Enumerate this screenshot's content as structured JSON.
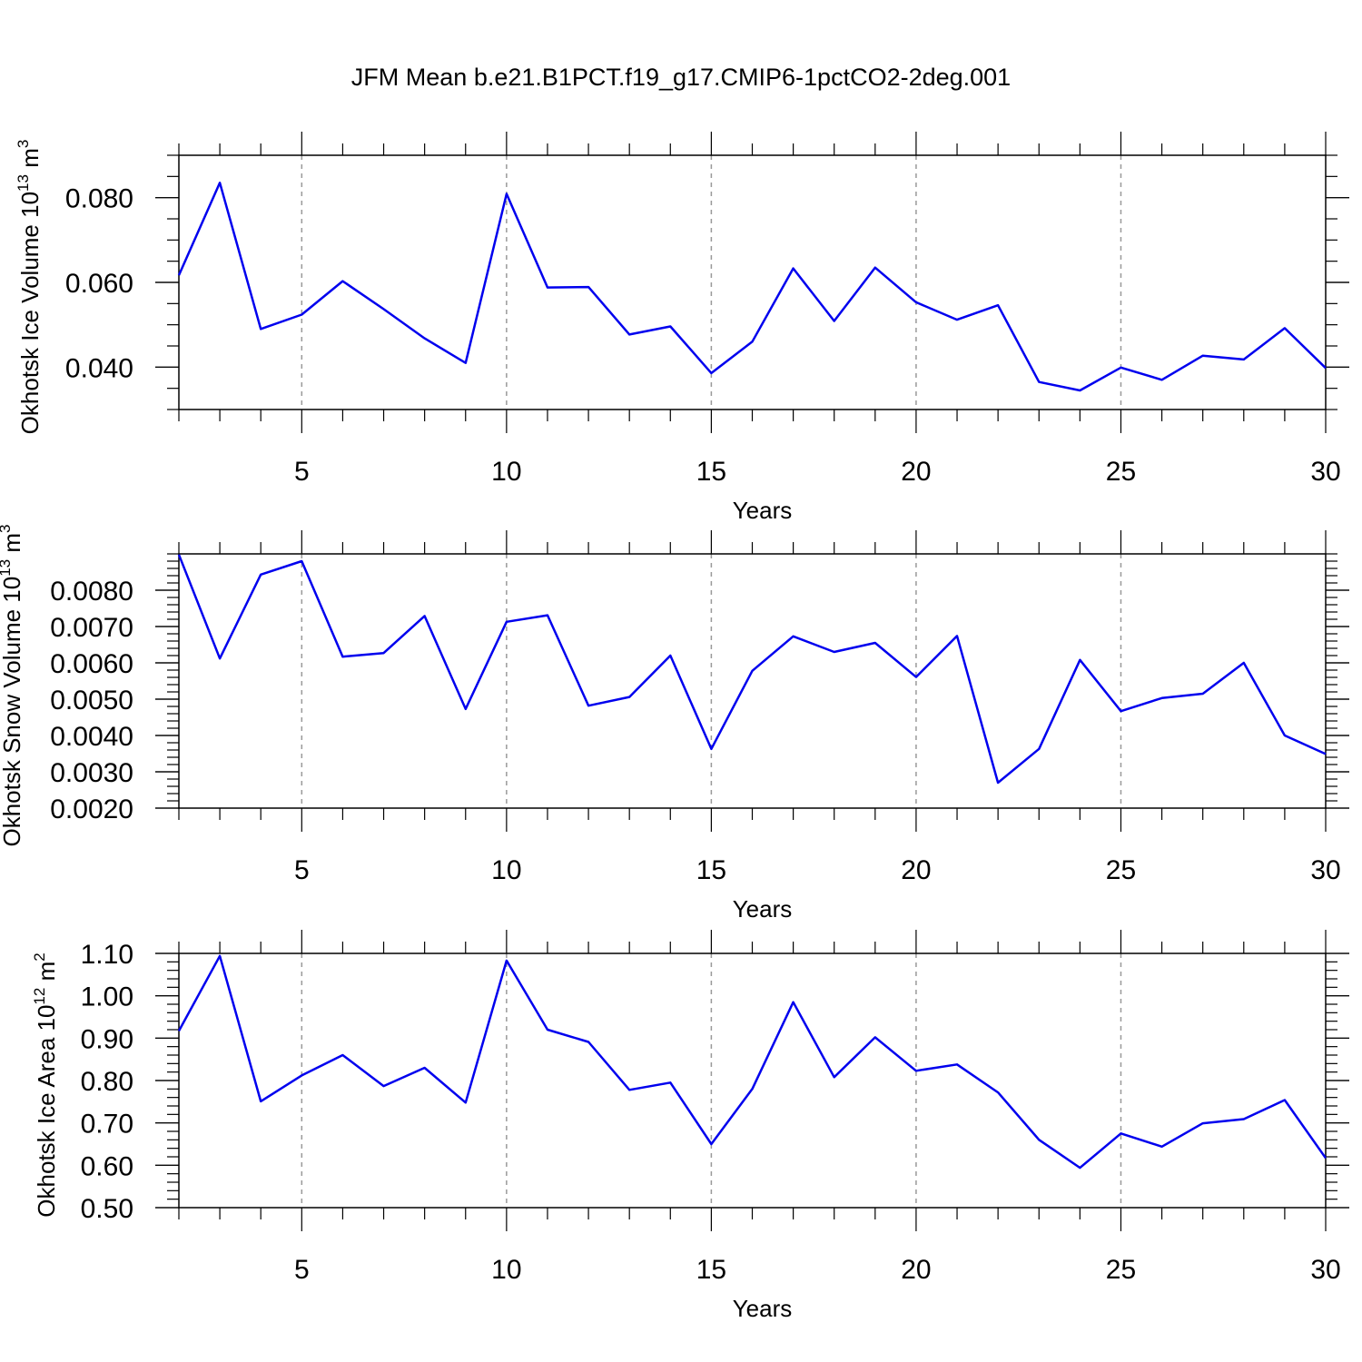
{
  "title": "JFM Mean b.e21.B1PCT.f19_g17.CMIP6-1pctCO2-2deg.001",
  "line_color": "#0000ee",
  "chart_data": [
    {
      "type": "line",
      "xlabel": "Years",
      "ylabel": "Okhotsk Ice Volume 10",
      "ylabel_exp": "13",
      "ylabel_unit": "m",
      "ylabel_unit_exp": "3",
      "xlim": [
        2,
        30
      ],
      "ylim": [
        0.03,
        0.09
      ],
      "x_ticks": [
        5,
        10,
        15,
        20,
        25,
        30
      ],
      "x_tick_labels": [
        "5",
        "10",
        "15",
        "20",
        "25",
        "30"
      ],
      "y_ticks": [
        0.04,
        0.06,
        0.08
      ],
      "y_tick_labels": [
        "0.040",
        "0.060",
        "0.080"
      ],
      "y_minor_step": 0.005,
      "grid_x": true,
      "x": [
        2,
        3,
        4,
        5,
        6,
        7,
        8,
        9,
        10,
        11,
        12,
        13,
        14,
        15,
        16,
        17,
        18,
        19,
        20,
        21,
        22,
        23,
        24,
        25,
        26,
        27,
        28,
        29,
        30
      ],
      "values": [
        0.0617,
        0.0835,
        0.049,
        0.0524,
        0.0603,
        0.0537,
        0.0468,
        0.041,
        0.0809,
        0.0588,
        0.0589,
        0.0477,
        0.0496,
        0.0386,
        0.046,
        0.0633,
        0.0509,
        0.0635,
        0.0553,
        0.0512,
        0.0546,
        0.0365,
        0.0345,
        0.0399,
        0.037,
        0.0427,
        0.0418,
        0.0492,
        0.0398
      ]
    },
    {
      "type": "line",
      "xlabel": "Years",
      "ylabel": "Okhotsk Snow Volume 10",
      "ylabel_exp": "13",
      "ylabel_unit": "m",
      "ylabel_unit_exp": "3",
      "xlim": [
        2,
        30
      ],
      "ylim": [
        0.002,
        0.009
      ],
      "x_ticks": [
        5,
        10,
        15,
        20,
        25,
        30
      ],
      "x_tick_labels": [
        "5",
        "10",
        "15",
        "20",
        "25",
        "30"
      ],
      "y_ticks": [
        0.002,
        0.003,
        0.004,
        0.005,
        0.006,
        0.007,
        0.008
      ],
      "y_tick_labels": [
        "0.0020",
        "0.0030",
        "0.0040",
        "0.0050",
        "0.0060",
        "0.0070",
        "0.0080"
      ],
      "y_minor_step": 0.0002,
      "grid_x": true,
      "x": [
        2,
        3,
        4,
        5,
        6,
        7,
        8,
        9,
        10,
        11,
        12,
        13,
        14,
        15,
        16,
        17,
        18,
        19,
        20,
        21,
        22,
        23,
        24,
        25,
        26,
        27,
        28,
        29,
        30
      ],
      "values": [
        0.00898,
        0.00612,
        0.00843,
        0.0088,
        0.00617,
        0.00627,
        0.00729,
        0.00473,
        0.00713,
        0.00731,
        0.00482,
        0.00506,
        0.0062,
        0.00363,
        0.00578,
        0.00673,
        0.0063,
        0.00655,
        0.00561,
        0.00674,
        0.0027,
        0.00363,
        0.00608,
        0.00467,
        0.00503,
        0.00515,
        0.006,
        0.004,
        0.00349
      ]
    },
    {
      "type": "line",
      "xlabel": "Years",
      "ylabel": "Okhotsk Ice Area 10",
      "ylabel_exp": "12",
      "ylabel_unit": "m",
      "ylabel_unit_exp": "2",
      "xlim": [
        2,
        30
      ],
      "ylim": [
        0.5,
        1.1
      ],
      "x_ticks": [
        5,
        10,
        15,
        20,
        25,
        30
      ],
      "x_tick_labels": [
        "5",
        "10",
        "15",
        "20",
        "25",
        "30"
      ],
      "y_ticks": [
        0.5,
        0.6,
        0.7,
        0.8,
        0.9,
        1.0,
        1.1
      ],
      "y_tick_labels": [
        "0.50",
        "0.60",
        "0.70",
        "0.80",
        "0.90",
        "1.00",
        "1.10"
      ],
      "y_minor_step": 0.02,
      "grid_x": true,
      "x": [
        2,
        3,
        4,
        5,
        6,
        7,
        8,
        9,
        10,
        11,
        12,
        13,
        14,
        15,
        16,
        17,
        18,
        19,
        20,
        21,
        22,
        23,
        24,
        25,
        26,
        27,
        28,
        29,
        30
      ],
      "values": [
        0.917,
        1.094,
        0.751,
        0.812,
        0.86,
        0.787,
        0.83,
        0.748,
        1.083,
        0.92,
        0.891,
        0.778,
        0.795,
        0.65,
        0.78,
        0.985,
        0.808,
        0.902,
        0.823,
        0.838,
        0.772,
        0.66,
        0.594,
        0.675,
        0.644,
        0.699,
        0.709,
        0.754,
        0.617
      ]
    }
  ]
}
